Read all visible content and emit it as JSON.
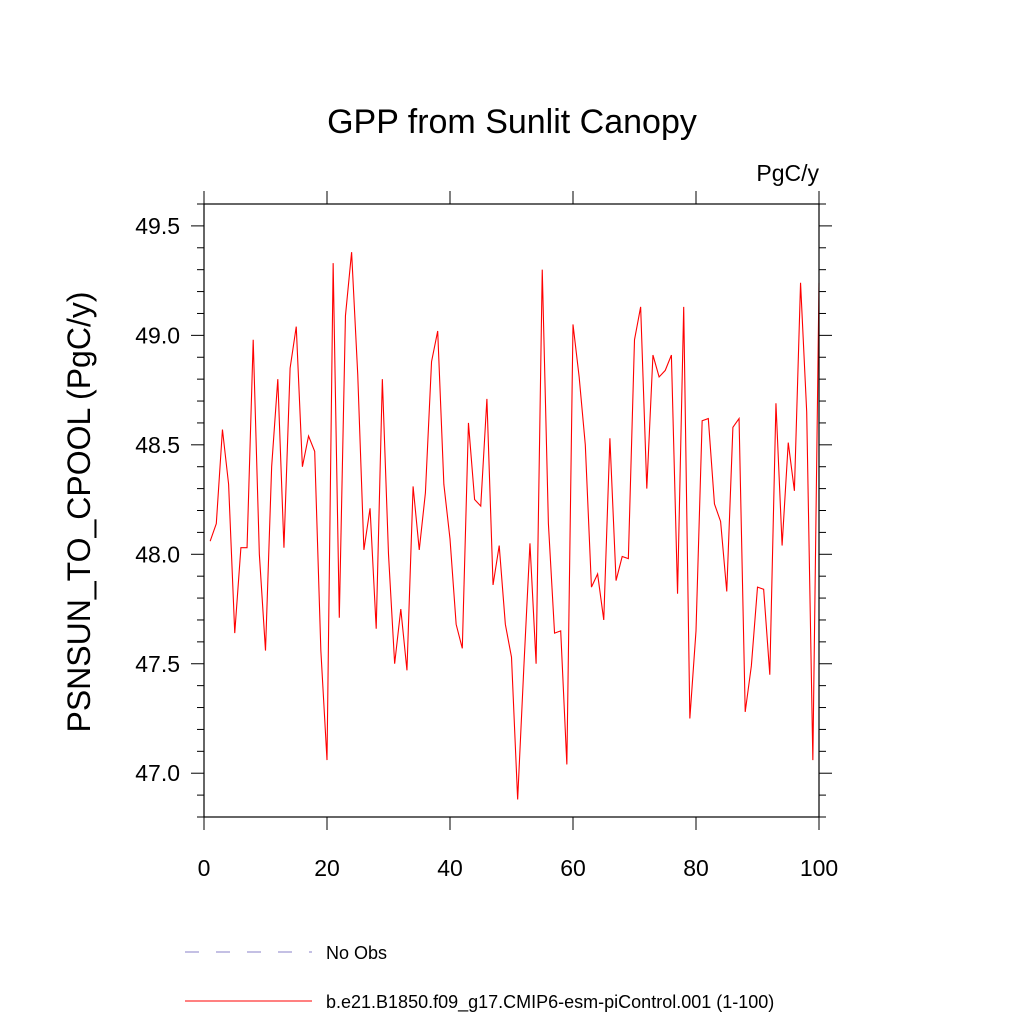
{
  "chart_data": {
    "type": "line",
    "title": "GPP from Sunlit Canopy",
    "units": "PgC/y",
    "ylabel": "PSNSUN_TO_CPOOL  (PgC/y)",
    "xlabel": "",
    "xlim": [
      0,
      100
    ],
    "ylim": [
      46.8,
      49.6
    ],
    "x_ticks": [
      0,
      20,
      40,
      60,
      80,
      100
    ],
    "y_ticks": [
      47.0,
      47.5,
      48.0,
      48.5,
      49.0,
      49.5
    ],
    "x_tick_labels": [
      "0",
      "20",
      "40",
      "60",
      "80",
      "100"
    ],
    "y_tick_labels": [
      "47.0",
      "47.5",
      "48.0",
      "48.5",
      "49.0",
      "49.5"
    ],
    "grid": false,
    "legend_position": "bottom",
    "legend": [
      {
        "label": "No Obs",
        "color": "#8a80c8",
        "style": "dashed"
      },
      {
        "label": "b.e21.B1850.f09_g17.CMIP6-esm-piControl.001 (1-100)",
        "color": "#ff0000",
        "style": "solid"
      }
    ],
    "series": [
      {
        "name": "b.e21.B1850.f09_g17.CMIP6-esm-piControl.001 (1-100)",
        "color": "#ff0000",
        "x": [
          1,
          2,
          3,
          4,
          5,
          6,
          7,
          8,
          9,
          10,
          11,
          12,
          13,
          14,
          15,
          16,
          17,
          18,
          19,
          20,
          21,
          22,
          23,
          24,
          25,
          26,
          27,
          28,
          29,
          30,
          31,
          32,
          33,
          34,
          35,
          36,
          37,
          38,
          39,
          40,
          41,
          42,
          43,
          44,
          45,
          46,
          47,
          48,
          49,
          50,
          51,
          52,
          53,
          54,
          55,
          56,
          57,
          58,
          59,
          60,
          61,
          62,
          63,
          64,
          65,
          66,
          67,
          68,
          69,
          70,
          71,
          72,
          73,
          74,
          75,
          76,
          77,
          78,
          79,
          80,
          81,
          82,
          83,
          84,
          85,
          86,
          87,
          88,
          89,
          90,
          91,
          92,
          93,
          94,
          95,
          96,
          97,
          98,
          99,
          100
        ],
        "values": [
          48.06,
          48.14,
          48.57,
          48.32,
          47.64,
          48.03,
          48.03,
          48.98,
          48.0,
          47.56,
          48.4,
          48.8,
          48.03,
          48.85,
          49.04,
          48.4,
          48.54,
          48.47,
          47.56,
          47.06,
          49.33,
          47.71,
          49.09,
          49.38,
          48.82,
          48.02,
          48.21,
          47.66,
          48.8,
          48.0,
          47.5,
          47.75,
          47.47,
          48.31,
          48.02,
          48.28,
          48.88,
          49.02,
          48.32,
          48.07,
          47.68,
          47.57,
          48.6,
          48.25,
          48.22,
          48.71,
          47.86,
          48.04,
          47.68,
          47.53,
          46.88,
          47.48,
          48.05,
          47.5,
          49.3,
          48.14,
          47.64,
          47.65,
          47.04,
          49.05,
          48.81,
          48.5,
          47.85,
          47.91,
          47.7,
          48.53,
          47.88,
          47.99,
          47.98,
          48.98,
          49.13,
          48.3,
          48.91,
          48.81,
          48.84,
          48.91,
          47.82,
          49.13,
          47.25,
          47.65,
          48.61,
          48.62,
          48.23,
          48.15,
          47.83,
          48.58,
          48.62,
          47.28,
          47.49,
          47.85,
          47.84,
          47.45,
          48.69,
          48.04,
          48.51,
          48.29,
          49.24,
          48.65,
          47.06,
          49.24
        ]
      }
    ]
  }
}
